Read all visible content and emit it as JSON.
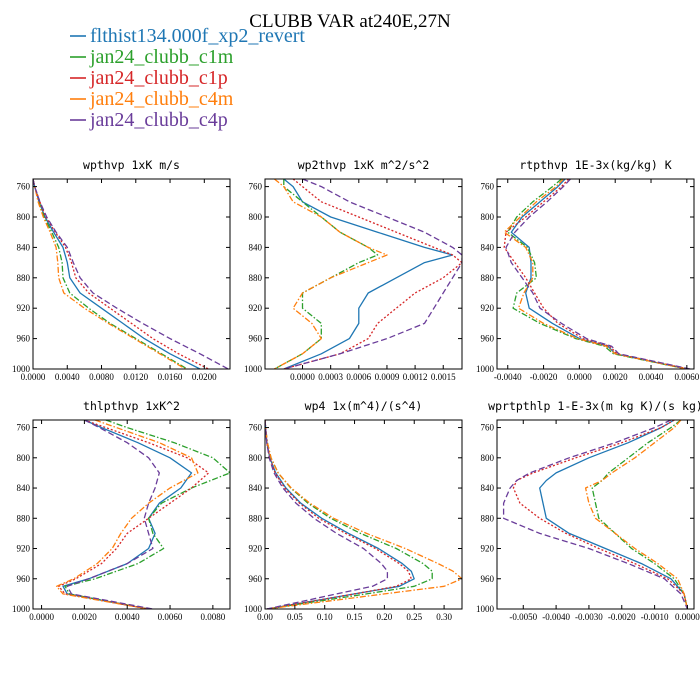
{
  "figure": {
    "title": "CLUBB VAR at240E,27N"
  },
  "legend": [
    {
      "name": "flthist134.000f_xp2_revert",
      "color": "#1f77b4",
      "dash": "solid"
    },
    {
      "name": "jan24_clubb_c1m",
      "color": "#2ca02c",
      "dash": "dashdot"
    },
    {
      "name": "jan24_clubb_c1p",
      "color": "#d62728",
      "dash": "dot"
    },
    {
      "name": "jan24_clubb_c4m",
      "color": "#ff7f0e",
      "dash": "dashdot"
    },
    {
      "name": "jan24_clubb_c4p",
      "color": "#6a3d9a",
      "dash": "dash"
    }
  ],
  "chart_data": [
    {
      "type": "line",
      "title": "wpthvp  1xK m/s",
      "xlim": [
        0,
        0.023
      ],
      "ylim": [
        750,
        1000
      ],
      "y_inverted": true,
      "xticks": [
        "0.0000",
        "0.0040",
        "0.0080",
        "0.0120",
        "0.0160",
        "0.0200"
      ],
      "xtick_values": [
        0,
        0.004,
        0.008,
        0.012,
        0.016,
        0.02
      ],
      "yticks": [
        "760",
        "800",
        "840",
        "880",
        "920",
        "960",
        "1000"
      ],
      "ytick_values": [
        760,
        800,
        840,
        880,
        920,
        960,
        1000
      ],
      "y": [
        750,
        760,
        780,
        800,
        820,
        840,
        860,
        880,
        900,
        920,
        940,
        960,
        980,
        1000
      ],
      "series": [
        {
          "name": "flthist134.000f_xp2_revert",
          "values": [
            0.0,
            0.0002,
            0.0007,
            0.0014,
            0.0024,
            0.0035,
            0.004,
            0.0043,
            0.0055,
            0.008,
            0.0105,
            0.013,
            0.016,
            0.0195
          ]
        },
        {
          "name": "jan24_clubb_c1m",
          "values": [
            0.0,
            0.0002,
            0.0007,
            0.0013,
            0.0022,
            0.003,
            0.0034,
            0.0035,
            0.0043,
            0.0065,
            0.009,
            0.012,
            0.015,
            0.018
          ]
        },
        {
          "name": "jan24_clubb_c1p",
          "values": [
            0.0,
            0.0002,
            0.0008,
            0.0015,
            0.0026,
            0.0038,
            0.0045,
            0.005,
            0.0065,
            0.009,
            0.0115,
            0.014,
            0.017,
            0.0205
          ]
        },
        {
          "name": "jan24_clubb_c4m",
          "values": [
            0.0,
            0.0002,
            0.0006,
            0.0012,
            0.002,
            0.0027,
            0.0029,
            0.003,
            0.0036,
            0.006,
            0.0088,
            0.0118,
            0.0148,
            0.0178
          ]
        },
        {
          "name": "jan24_clubb_c4p",
          "values": [
            0.0,
            0.0002,
            0.0008,
            0.0016,
            0.0027,
            0.004,
            0.0047,
            0.0055,
            0.007,
            0.0098,
            0.0128,
            0.016,
            0.0195,
            0.0228
          ]
        }
      ]
    },
    {
      "type": "line",
      "title": "wp2thvp  1xK m^2/s^2",
      "xlim": [
        -0.0004,
        0.0017
      ],
      "ylim": [
        750,
        1000
      ],
      "y_inverted": true,
      "xticks": [
        "0.0000",
        "0.0003",
        "0.0006",
        "0.0009",
        "0.0012",
        "0.0015"
      ],
      "xtick_values": [
        0,
        0.0003,
        0.0006,
        0.0009,
        0.0012,
        0.0015
      ],
      "yticks": [
        "760",
        "800",
        "840",
        "880",
        "920",
        "960",
        "1000"
      ],
      "ytick_values": [
        760,
        800,
        840,
        880,
        920,
        960,
        1000
      ],
      "y": [
        750,
        760,
        780,
        800,
        820,
        840,
        850,
        860,
        880,
        900,
        920,
        940,
        960,
        980,
        1000
      ],
      "series": [
        {
          "name": "flthist134.000f_xp2_revert",
          "values": [
            -0.0002,
            -0.0001,
            0.0,
            0.0003,
            0.0008,
            0.0013,
            0.0016,
            0.0013,
            0.001,
            0.0007,
            0.0006,
            0.0006,
            0.0005,
            0.0002,
            -0.0002
          ]
        },
        {
          "name": "jan24_clubb_c1m",
          "values": [
            -0.0002,
            -0.0002,
            0.0,
            0.0002,
            0.0004,
            0.0007,
            0.0008,
            0.0006,
            0.0003,
            0.0,
            0.0,
            0.0002,
            0.0002,
            0.0,
            -0.0003
          ]
        },
        {
          "name": "jan24_clubb_c1p",
          "values": [
            -0.0001,
            0.0,
            0.0002,
            0.0006,
            0.001,
            0.0014,
            0.0016,
            0.0017,
            0.0015,
            0.0012,
            0.001,
            0.0008,
            0.0007,
            0.0004,
            -0.0002
          ]
        },
        {
          "name": "jan24_clubb_c4m",
          "values": [
            -0.0003,
            -0.0002,
            -0.0001,
            0.0002,
            0.0004,
            0.0007,
            0.0009,
            0.0007,
            0.0003,
            0.0,
            -0.0001,
            0.0001,
            0.0002,
            0.0,
            -0.0003
          ]
        },
        {
          "name": "jan24_clubb_c4p",
          "values": [
            0.0,
            0.0002,
            0.0005,
            0.0009,
            0.0013,
            0.0016,
            0.0017,
            0.0017,
            0.0016,
            0.0015,
            0.0014,
            0.0013,
            0.0009,
            0.0004,
            -0.0002
          ]
        }
      ]
    },
    {
      "type": "line",
      "title": "rtpthvp  1E-3x(kg/kg) K",
      "xlim": [
        -0.0046,
        0.0064
      ],
      "ylim": [
        750,
        1000
      ],
      "y_inverted": true,
      "xticks": [
        "-0.0040",
        "-0.0020",
        "0.0000",
        "0.0020",
        "0.0040",
        "0.0060"
      ],
      "xtick_values": [
        -0.004,
        -0.002,
        0,
        0.002,
        0.004,
        0.006
      ],
      "yticks": [
        "760",
        "800",
        "840",
        "880",
        "920",
        "960",
        "1000"
      ],
      "ytick_values": [
        760,
        800,
        840,
        880,
        920,
        960,
        1000
      ],
      "y": [
        750,
        760,
        780,
        800,
        820,
        840,
        860,
        880,
        900,
        920,
        940,
        960,
        970,
        980,
        1000
      ],
      "series": [
        {
          "name": "flthist134.000f_xp2_revert",
          "values": [
            -0.0008,
            -0.0012,
            -0.0022,
            -0.0032,
            -0.0038,
            -0.0028,
            -0.0027,
            -0.0027,
            -0.003,
            -0.0028,
            -0.0015,
            0.0,
            0.0016,
            0.002,
            0.006
          ]
        },
        {
          "name": "jan24_clubb_c1m",
          "values": [
            -0.001,
            -0.0015,
            -0.0026,
            -0.0035,
            -0.004,
            -0.0029,
            -0.0025,
            -0.0024,
            -0.0035,
            -0.0037,
            -0.0022,
            -0.0002,
            0.0014,
            0.0019,
            0.006
          ]
        },
        {
          "name": "jan24_clubb_c1p",
          "values": [
            -0.0006,
            -0.001,
            -0.002,
            -0.003,
            -0.0041,
            -0.0042,
            -0.0036,
            -0.003,
            -0.0025,
            -0.002,
            -0.0012,
            0.0002,
            0.0017,
            0.0021,
            0.0061
          ]
        },
        {
          "name": "jan24_clubb_c4m",
          "values": [
            -0.0009,
            -0.0013,
            -0.0024,
            -0.0033,
            -0.0042,
            -0.003,
            -0.0026,
            -0.0026,
            -0.0031,
            -0.0034,
            -0.002,
            -0.0001,
            0.0015,
            0.002,
            0.006
          ]
        },
        {
          "name": "jan24_clubb_c4p",
          "values": [
            -0.0005,
            -0.0009,
            -0.0018,
            -0.0028,
            -0.0036,
            -0.0041,
            -0.0038,
            -0.0032,
            -0.0026,
            -0.0022,
            -0.001,
            0.0004,
            0.0018,
            0.0022,
            0.0062
          ]
        }
      ]
    },
    {
      "type": "line",
      "title": "thlpthvp  1xK^2",
      "xlim": [
        -0.0004,
        0.0088
      ],
      "ylim": [
        750,
        1000
      ],
      "y_inverted": true,
      "xticks": [
        "0.0000",
        "0.0020",
        "0.0040",
        "0.0060",
        "0.0080"
      ],
      "xtick_values": [
        0,
        0.002,
        0.004,
        0.006,
        0.008
      ],
      "yticks": [
        "760",
        "800",
        "840",
        "880",
        "920",
        "960",
        "1000"
      ],
      "ytick_values": [
        760,
        800,
        840,
        880,
        920,
        960,
        1000
      ],
      "y": [
        750,
        760,
        780,
        800,
        820,
        840,
        860,
        880,
        900,
        920,
        940,
        960,
        970,
        980,
        1000
      ],
      "series": [
        {
          "name": "flthist134.000f_xp2_revert",
          "values": [
            0.002,
            0.0028,
            0.0045,
            0.006,
            0.007,
            0.0065,
            0.0055,
            0.005,
            0.0053,
            0.005,
            0.004,
            0.0022,
            0.001,
            0.0012,
            0.005
          ]
        },
        {
          "name": "jan24_clubb_c1m",
          "values": [
            0.003,
            0.004,
            0.0062,
            0.008,
            0.0088,
            0.007,
            0.0056,
            0.005,
            0.0052,
            0.0057,
            0.0045,
            0.0025,
            0.0011,
            0.0013,
            0.005
          ]
        },
        {
          "name": "jan24_clubb_c1p",
          "values": [
            0.002,
            0.003,
            0.005,
            0.0068,
            0.0078,
            0.007,
            0.006,
            0.005,
            0.004,
            0.0035,
            0.0028,
            0.0016,
            0.0008,
            0.0011,
            0.005
          ]
        },
        {
          "name": "jan24_clubb_c4m",
          "values": [
            0.0025,
            0.0035,
            0.0055,
            0.007,
            0.0073,
            0.006,
            0.005,
            0.0042,
            0.0037,
            0.0033,
            0.0026,
            0.0015,
            0.0007,
            0.001,
            0.005
          ]
        },
        {
          "name": "jan24_clubb_c4p",
          "values": [
            0.002,
            0.0027,
            0.004,
            0.005,
            0.0055,
            0.0053,
            0.005,
            0.0048,
            0.005,
            0.0052,
            0.004,
            0.0022,
            0.0012,
            0.0014,
            0.0052
          ]
        }
      ]
    },
    {
      "type": "line",
      "title": "wp4  1x(m^4)/(s^4)",
      "xlim": [
        0,
        0.33
      ],
      "ylim": [
        750,
        1000
      ],
      "y_inverted": true,
      "xticks": [
        "0.00",
        "0.05",
        "0.10",
        "0.15",
        "0.20",
        "0.25",
        "0.30"
      ],
      "xtick_values": [
        0,
        0.05,
        0.1,
        0.15,
        0.2,
        0.25,
        0.3
      ],
      "yticks": [
        "760",
        "800",
        "840",
        "880",
        "920",
        "960",
        "1000"
      ],
      "ytick_values": [
        760,
        800,
        840,
        880,
        920,
        960,
        1000
      ],
      "y": [
        750,
        760,
        780,
        800,
        820,
        840,
        860,
        880,
        900,
        920,
        940,
        950,
        960,
        970,
        980,
        1000
      ],
      "series": [
        {
          "name": "flthist134.000f_xp2_revert",
          "values": [
            0.0,
            0.001,
            0.003,
            0.008,
            0.018,
            0.035,
            0.06,
            0.095,
            0.14,
            0.19,
            0.23,
            0.245,
            0.25,
            0.225,
            0.15,
            0.003
          ]
        },
        {
          "name": "jan24_clubb_c1m",
          "values": [
            0.0,
            0.001,
            0.004,
            0.01,
            0.022,
            0.043,
            0.072,
            0.11,
            0.16,
            0.22,
            0.265,
            0.28,
            0.28,
            0.25,
            0.17,
            0.003
          ]
        },
        {
          "name": "jan24_clubb_c1p",
          "values": [
            0.0,
            0.001,
            0.003,
            0.008,
            0.017,
            0.033,
            0.058,
            0.09,
            0.135,
            0.185,
            0.225,
            0.24,
            0.245,
            0.22,
            0.15,
            0.003
          ]
        },
        {
          "name": "jan24_clubb_c4m",
          "values": [
            0.0,
            0.001,
            0.004,
            0.01,
            0.022,
            0.044,
            0.075,
            0.115,
            0.17,
            0.235,
            0.29,
            0.315,
            0.33,
            0.3,
            0.2,
            0.003
          ]
        },
        {
          "name": "jan24_clubb_c4p",
          "values": [
            0.0,
            0.001,
            0.003,
            0.007,
            0.015,
            0.03,
            0.052,
            0.082,
            0.12,
            0.165,
            0.195,
            0.205,
            0.205,
            0.18,
            0.12,
            0.003
          ]
        }
      ]
    },
    {
      "type": "line",
      "title": "wprtpthlp  1-E-3x(m kg K)/(s kg)",
      "xlim": [
        -0.0058,
        0.0002
      ],
      "ylim": [
        750,
        1000
      ],
      "y_inverted": true,
      "xticks": [
        "-0.0050",
        "-0.0040",
        "-0.0030",
        "-0.0020",
        "-0.0010",
        "0.0000"
      ],
      "xtick_values": [
        -0.005,
        -0.004,
        -0.003,
        -0.002,
        -0.001,
        0
      ],
      "yticks": [
        "760",
        "800",
        "840",
        "880",
        "920",
        "960",
        "1000"
      ],
      "ytick_values": [
        760,
        800,
        840,
        880,
        920,
        960,
        1000
      ],
      "y": [
        750,
        760,
        780,
        800,
        820,
        830,
        840,
        860,
        880,
        900,
        920,
        940,
        960,
        980,
        1000
      ],
      "series": [
        {
          "name": "flthist134.000f_xp2_revert",
          "values": [
            -0.0004,
            -0.0008,
            -0.0018,
            -0.003,
            -0.004,
            -0.0043,
            -0.0045,
            -0.0044,
            -0.0043,
            -0.0036,
            -0.0025,
            -0.0014,
            -0.0005,
            -0.0001,
            0.0
          ]
        },
        {
          "name": "jan24_clubb_c1m",
          "values": [
            -0.0002,
            -0.0005,
            -0.0012,
            -0.0018,
            -0.0024,
            -0.0026,
            -0.0029,
            -0.0028,
            -0.0027,
            -0.0022,
            -0.0017,
            -0.001,
            -0.0004,
            -0.0001,
            0.0
          ]
        },
        {
          "name": "jan24_clubb_c1p",
          "values": [
            -0.0004,
            -0.0008,
            -0.002,
            -0.0034,
            -0.0047,
            -0.0052,
            -0.0053,
            -0.0051,
            -0.0045,
            -0.0037,
            -0.0027,
            -0.0016,
            -0.0006,
            -0.0001,
            0.0
          ]
        },
        {
          "name": "jan24_clubb_c4m",
          "values": [
            -0.0002,
            -0.0004,
            -0.001,
            -0.0016,
            -0.0023,
            -0.0026,
            -0.0031,
            -0.003,
            -0.0028,
            -0.0022,
            -0.0016,
            -0.0009,
            -0.0003,
            -0.0001,
            0.0
          ]
        },
        {
          "name": "jan24_clubb_c4p",
          "values": [
            -0.0005,
            -0.001,
            -0.0022,
            -0.0036,
            -0.0048,
            -0.0052,
            -0.0054,
            -0.0056,
            -0.0056,
            -0.0045,
            -0.003,
            -0.0018,
            -0.0007,
            -0.0002,
            0.0
          ]
        }
      ]
    }
  ]
}
